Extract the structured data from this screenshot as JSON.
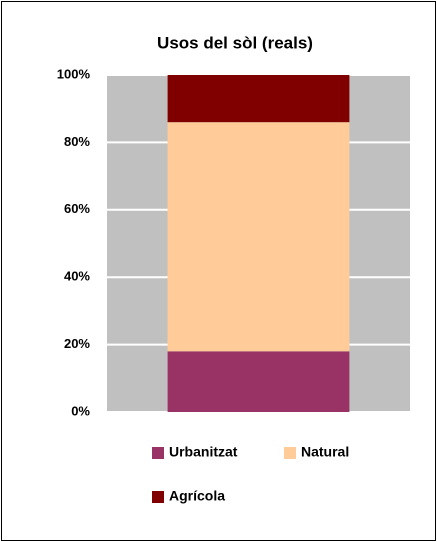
{
  "chart_data": {
    "type": "stacked_bar",
    "title": "Usos del sòl (reals)",
    "categories": [
      null
    ],
    "series": [
      {
        "name": "Urbanitzat",
        "color": "#993366",
        "values": [
          18
        ]
      },
      {
        "name": "Natural",
        "color": "#FFCC99",
        "values": [
          68
        ]
      },
      {
        "name": "Agrícola",
        "color": "#800000",
        "values": [
          14
        ]
      }
    ],
    "ylim": [
      0,
      100
    ],
    "yticks": [
      {
        "value": 0,
        "label": "0%"
      },
      {
        "value": 20,
        "label": "20%"
      },
      {
        "value": 40,
        "label": "40%"
      },
      {
        "value": 60,
        "label": "60%"
      },
      {
        "value": 80,
        "label": "80%"
      },
      {
        "value": 100,
        "label": "100%"
      }
    ],
    "grid": true,
    "plot_background": "#C0C0C0",
    "legend": "bottom"
  }
}
